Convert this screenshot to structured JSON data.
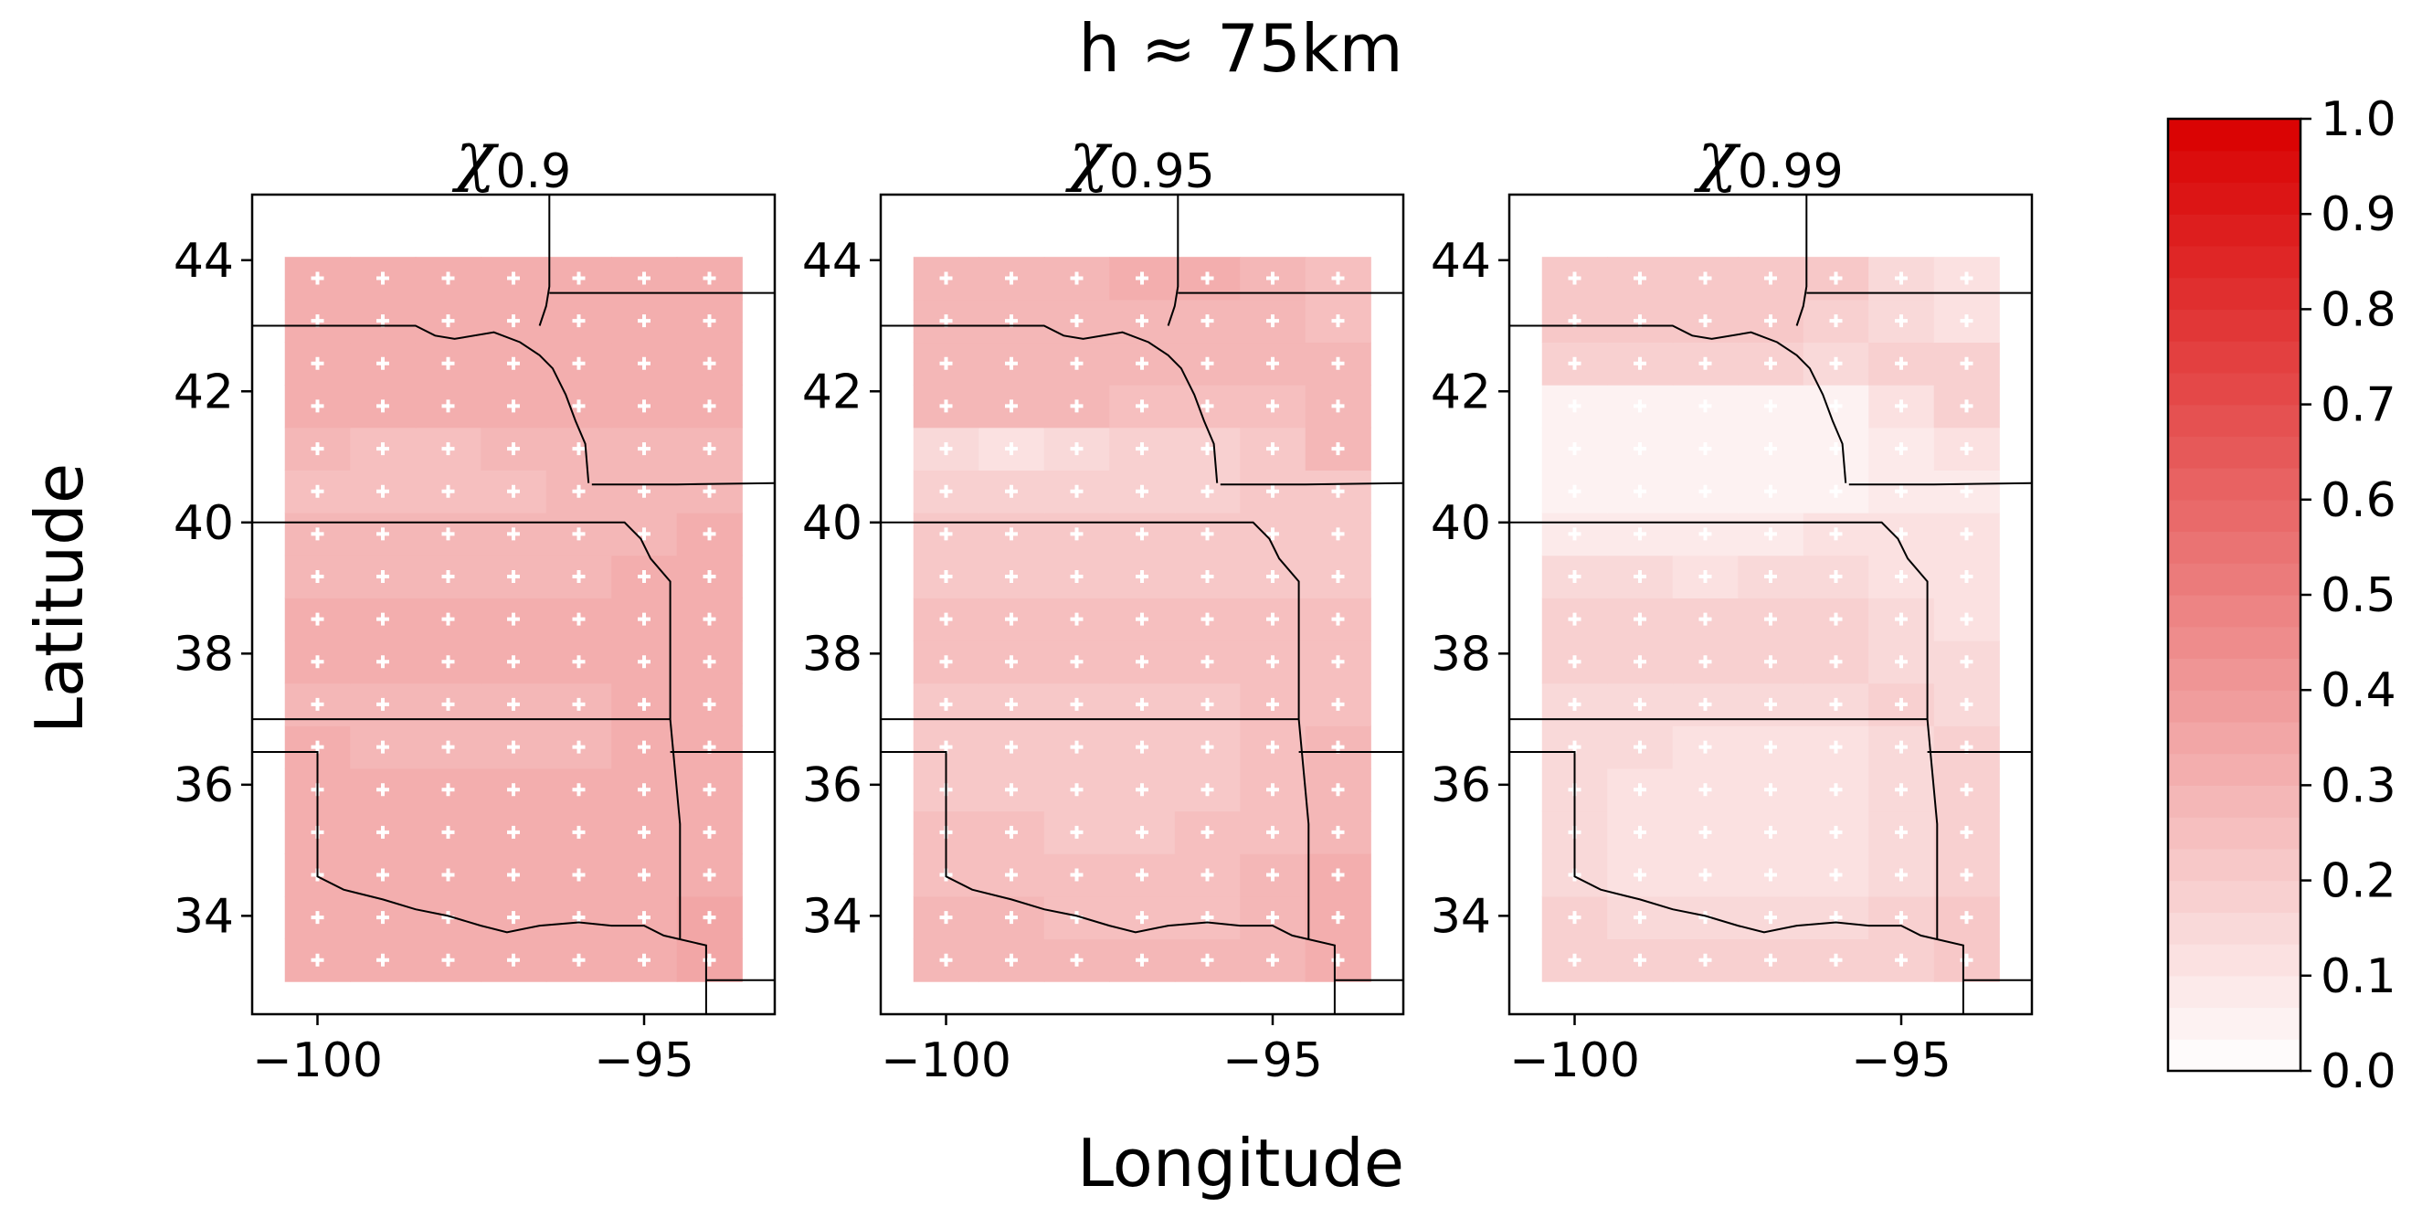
{
  "figure": {
    "title": "h ≈ 75km",
    "xlabel": "Longitude",
    "ylabel": "Latitude"
  },
  "chart_data": [
    {
      "type": "heatmap",
      "title_symbol": "χ",
      "title_subscript": "0.9",
      "xlim": [
        -101,
        -93
      ],
      "ylim": [
        32.5,
        45
      ],
      "xticks": [
        -100,
        -95
      ],
      "xtick_labels": [
        "−100",
        "−95"
      ],
      "yticks": [
        34,
        36,
        38,
        40,
        42,
        44
      ],
      "ytick_labels": [
        "34",
        "36",
        "38",
        "40",
        "42",
        "44"
      ],
      "grid_lon_edges": [
        -100.5,
        -99.5,
        -98.5,
        -97.5,
        -96.5,
        -95.5,
        -94.5,
        -93.5
      ],
      "grid_lat_edges": [
        33.0,
        33.65,
        34.3,
        34.95,
        35.6,
        36.25,
        36.9,
        37.55,
        38.2,
        38.85,
        39.5,
        40.15,
        40.8,
        41.45,
        42.1,
        42.75,
        43.4,
        44.05
      ],
      "values": [
        [
          0.33,
          0.31,
          0.32,
          0.32,
          0.32,
          0.33,
          0.34
        ],
        [
          0.32,
          0.31,
          0.31,
          0.31,
          0.31,
          0.32,
          0.34
        ],
        [
          0.31,
          0.31,
          0.31,
          0.31,
          0.31,
          0.32,
          0.33
        ],
        [
          0.31,
          0.31,
          0.31,
          0.31,
          0.31,
          0.31,
          0.33
        ],
        [
          0.31,
          0.3,
          0.3,
          0.3,
          0.3,
          0.31,
          0.32
        ],
        [
          0.3,
          0.29,
          0.29,
          0.29,
          0.29,
          0.3,
          0.31
        ],
        [
          0.29,
          0.29,
          0.29,
          0.29,
          0.29,
          0.3,
          0.31
        ],
        [
          0.3,
          0.3,
          0.3,
          0.3,
          0.3,
          0.31,
          0.32
        ],
        [
          0.3,
          0.3,
          0.3,
          0.3,
          0.3,
          0.31,
          0.32
        ],
        [
          0.29,
          0.29,
          0.29,
          0.29,
          0.29,
          0.3,
          0.31
        ],
        [
          0.28,
          0.28,
          0.28,
          0.28,
          0.28,
          0.29,
          0.3
        ],
        [
          0.26,
          0.25,
          0.26,
          0.26,
          0.27,
          0.28,
          0.29
        ],
        [
          0.27,
          0.24,
          0.26,
          0.27,
          0.28,
          0.29,
          0.29
        ],
        [
          0.31,
          0.31,
          0.31,
          0.31,
          0.32,
          0.32,
          0.31
        ],
        [
          0.32,
          0.32,
          0.32,
          0.32,
          0.32,
          0.32,
          0.32
        ],
        [
          0.32,
          0.32,
          0.32,
          0.32,
          0.32,
          0.31,
          0.31
        ],
        [
          0.33,
          0.33,
          0.32,
          0.33,
          0.33,
          0.32,
          0.31
        ]
      ],
      "significance_markers": "all"
    },
    {
      "type": "heatmap",
      "title_symbol": "χ",
      "title_subscript": "0.95",
      "xlim": [
        -101,
        -93
      ],
      "ylim": [
        32.5,
        45
      ],
      "xticks": [
        -100,
        -95
      ],
      "xtick_labels": [
        "−100",
        "−95"
      ],
      "yticks": [
        34,
        36,
        38,
        40,
        42,
        44
      ],
      "ytick_labels": [
        "34",
        "36",
        "38",
        "40",
        "42",
        "44"
      ],
      "grid_lon_edges": [
        -100.5,
        -99.5,
        -98.5,
        -97.5,
        -96.5,
        -95.5,
        -94.5,
        -93.5
      ],
      "grid_lat_edges": [
        33.0,
        33.65,
        34.3,
        34.95,
        35.6,
        36.25,
        36.9,
        37.55,
        38.2,
        38.85,
        39.5,
        40.15,
        40.8,
        41.45,
        42.1,
        42.75,
        43.4,
        44.05
      ],
      "values": [
        [
          0.27,
          0.27,
          0.27,
          0.27,
          0.27,
          0.29,
          0.31
        ],
        [
          0.27,
          0.27,
          0.26,
          0.26,
          0.26,
          0.28,
          0.31
        ],
        [
          0.25,
          0.25,
          0.25,
          0.25,
          0.26,
          0.27,
          0.31
        ],
        [
          0.24,
          0.24,
          0.23,
          0.23,
          0.24,
          0.26,
          0.29
        ],
        [
          0.23,
          0.22,
          0.22,
          0.22,
          0.23,
          0.25,
          0.28
        ],
        [
          0.22,
          0.22,
          0.2,
          0.2,
          0.21,
          0.24,
          0.27
        ],
        [
          0.23,
          0.23,
          0.23,
          0.23,
          0.23,
          0.25,
          0.26
        ],
        [
          0.25,
          0.25,
          0.25,
          0.26,
          0.26,
          0.25,
          0.25
        ],
        [
          0.24,
          0.24,
          0.25,
          0.26,
          0.26,
          0.25,
          0.24
        ],
        [
          0.22,
          0.22,
          0.22,
          0.23,
          0.23,
          0.23,
          0.23
        ],
        [
          0.2,
          0.2,
          0.2,
          0.21,
          0.21,
          0.22,
          0.22
        ],
        [
          0.17,
          0.17,
          0.17,
          0.17,
          0.18,
          0.21,
          0.22
        ],
        [
          0.15,
          0.13,
          0.15,
          0.17,
          0.18,
          0.22,
          0.27
        ],
        [
          0.28,
          0.27,
          0.27,
          0.26,
          0.25,
          0.26,
          0.27
        ],
        [
          0.29,
          0.29,
          0.29,
          0.29,
          0.28,
          0.28,
          0.27
        ],
        [
          0.28,
          0.28,
          0.28,
          0.29,
          0.29,
          0.28,
          0.26
        ],
        [
          0.29,
          0.29,
          0.29,
          0.3,
          0.3,
          0.27,
          0.26
        ]
      ],
      "significance_markers": "all"
    },
    {
      "type": "heatmap",
      "title_symbol": "χ",
      "title_subscript": "0.99",
      "xlim": [
        -101,
        -93
      ],
      "ylim": [
        32.5,
        45
      ],
      "xticks": [
        -100,
        -95
      ],
      "xtick_labels": [
        "−100",
        "−95"
      ],
      "yticks": [
        34,
        36,
        38,
        40,
        42,
        44
      ],
      "ytick_labels": [
        "34",
        "36",
        "38",
        "40",
        "42",
        "44"
      ],
      "grid_lon_edges": [
        -100.5,
        -99.5,
        -98.5,
        -97.5,
        -96.5,
        -95.5,
        -94.5,
        -93.5
      ],
      "grid_lat_edges": [
        33.0,
        33.65,
        34.3,
        34.95,
        35.6,
        36.25,
        36.9,
        37.55,
        38.2,
        38.85,
        39.5,
        40.15,
        40.8,
        41.45,
        42.1,
        42.75,
        43.4,
        44.05
      ],
      "values": [
        [
          0.17,
          0.17,
          0.17,
          0.17,
          0.17,
          0.19,
          0.21
        ],
        [
          0.17,
          0.16,
          0.15,
          0.15,
          0.15,
          0.17,
          0.2
        ],
        [
          0.15,
          0.13,
          0.12,
          0.12,
          0.13,
          0.16,
          0.19
        ],
        [
          0.14,
          0.12,
          0.1,
          0.1,
          0.11,
          0.15,
          0.18
        ],
        [
          0.14,
          0.12,
          0.11,
          0.11,
          0.12,
          0.15,
          0.18
        ],
        [
          0.15,
          0.14,
          0.12,
          0.12,
          0.13,
          0.16,
          0.18
        ],
        [
          0.16,
          0.15,
          0.15,
          0.15,
          0.15,
          0.17,
          0.15
        ],
        [
          0.18,
          0.18,
          0.17,
          0.18,
          0.18,
          0.16,
          0.14
        ],
        [
          0.17,
          0.17,
          0.17,
          0.18,
          0.18,
          0.16,
          0.12
        ],
        [
          0.15,
          0.14,
          0.13,
          0.14,
          0.14,
          0.13,
          0.11
        ],
        [
          0.08,
          0.07,
          0.08,
          0.09,
          0.1,
          0.1,
          0.1
        ],
        [
          0.04,
          0.04,
          0.04,
          0.05,
          0.06,
          0.08,
          0.09
        ],
        [
          0.06,
          0.04,
          0.04,
          0.04,
          0.05,
          0.09,
          0.1
        ],
        [
          0.05,
          0.05,
          0.04,
          0.04,
          0.06,
          0.1,
          0.18
        ],
        [
          0.19,
          0.19,
          0.19,
          0.18,
          0.16,
          0.17,
          0.18
        ],
        [
          0.2,
          0.2,
          0.2,
          0.2,
          0.19,
          0.16,
          0.12
        ],
        [
          0.21,
          0.21,
          0.2,
          0.21,
          0.21,
          0.16,
          0.12
        ]
      ],
      "significance_markers": "all"
    }
  ],
  "colorbar": {
    "vmin": 0,
    "vmax": 1,
    "levels": 30,
    "tick_values": [
      0,
      0.1,
      0.2,
      0.3,
      0.4,
      0.5,
      0.6,
      0.7,
      0.8,
      0.9,
      1.0
    ],
    "tick_labels": [
      "0.0",
      "0.1",
      "0.2",
      "0.3",
      "0.4",
      "0.5",
      "0.6",
      "0.7",
      "0.8",
      "0.9",
      "1.0"
    ],
    "low_color": "#ffffff",
    "high_color": "#d90000"
  },
  "colors": {
    "marker": "#ffffff",
    "border": "#000000"
  },
  "borders": {
    "state_lines": [
      [
        [
          -101,
          43.0
        ],
        [
          -98.5,
          43.0
        ],
        [
          -98.2,
          42.85
        ],
        [
          -97.9,
          42.8
        ],
        [
          -97.3,
          42.9
        ],
        [
          -96.9,
          42.75
        ],
        [
          -96.6,
          42.55
        ],
        [
          -96.4,
          42.35
        ],
        [
          -96.2,
          41.95
        ],
        [
          -96.05,
          41.55
        ],
        [
          -95.9,
          41.2
        ],
        [
          -95.85,
          40.6
        ]
      ],
      [
        [
          -96.45,
          45
        ],
        [
          -96.45,
          43.6
        ],
        [
          -96.5,
          43.3
        ],
        [
          -96.6,
          43.0
        ]
      ],
      [
        [
          -96.45,
          43.5
        ],
        [
          -93,
          43.5
        ]
      ],
      [
        [
          -95.8,
          40.58
        ],
        [
          -94.5,
          40.58
        ],
        [
          -93,
          40.6
        ]
      ],
      [
        [
          -101,
          40.0
        ],
        [
          -95.3,
          40.0
        ],
        [
          -95.05,
          39.75
        ],
        [
          -94.9,
          39.45
        ],
        [
          -94.6,
          39.1
        ],
        [
          -94.6,
          37.0
        ]
      ],
      [
        [
          -101,
          37.0
        ],
        [
          -94.6,
          37.0
        ]
      ],
      [
        [
          -94.6,
          36.5
        ],
        [
          -93,
          36.5
        ]
      ],
      [
        [
          -94.6,
          37.0
        ],
        [
          -94.45,
          35.4
        ],
        [
          -94.45,
          33.65
        ]
      ],
      [
        [
          -101,
          36.5
        ],
        [
          -100.0,
          36.5
        ],
        [
          -100.0,
          34.6
        ],
        [
          -99.6,
          34.4
        ],
        [
          -99.0,
          34.25
        ],
        [
          -98.5,
          34.1
        ],
        [
          -98.0,
          34.0
        ],
        [
          -97.5,
          33.85
        ],
        [
          -97.1,
          33.75
        ],
        [
          -96.6,
          33.85
        ],
        [
          -96.0,
          33.9
        ],
        [
          -95.5,
          33.85
        ],
        [
          -95.0,
          33.85
        ],
        [
          -94.7,
          33.7
        ],
        [
          -94.05,
          33.55
        ],
        [
          -94.05,
          32.5
        ]
      ],
      [
        [
          -94.05,
          33.02
        ],
        [
          -93,
          33.02
        ]
      ]
    ]
  }
}
